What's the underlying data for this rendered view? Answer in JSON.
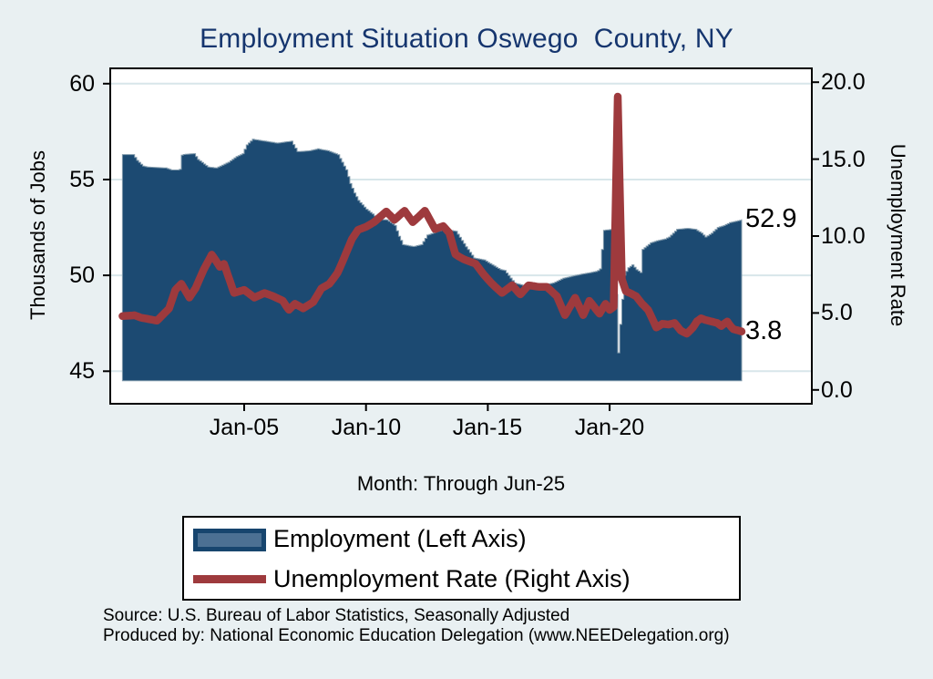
{
  "colors": {
    "background": "#e9f0f2",
    "plot_background": "#ffffff",
    "gridline": "#d8e6ea",
    "axis": "#000000",
    "title_text": "#15356e",
    "area_fill": "#1c4a72",
    "area_outline": "#8099ab",
    "area_legend_fill": "#4c7093",
    "area_legend_border": "#17456e",
    "line": "#9e3a3d"
  },
  "footer": {
    "line1": "Source: U.S. Bureau of Labor Statistics, Seasonally Adjusted",
    "line2": "Produced by: National Economic Education Delegation (www.NEEDelegation.org)"
  },
  "chart_data": {
    "type": "combo",
    "title": "Employment Situation Oswego  County, NY",
    "grid": "horizontal",
    "legend_position": "bottom",
    "x_axis": {
      "label": "Month: Through Jun-25",
      "range": [
        1999.5,
        2028.3
      ],
      "ticks": [
        {
          "label": "Jan-05",
          "year": 2005
        },
        {
          "label": "Jan-10",
          "year": 2010
        },
        {
          "label": "Jan-15",
          "year": 2015
        },
        {
          "label": "Jan-20",
          "year": 2020
        }
      ]
    },
    "left_axis": {
      "label": "Thousands of Jobs",
      "range": [
        43.3,
        60.8
      ],
      "ticks": [
        45,
        50,
        55,
        60
      ]
    },
    "right_axis": {
      "label": "Unemployment Rate",
      "range": [
        -0.9,
        20.9
      ],
      "ticks": [
        0,
        5,
        10,
        15,
        20
      ]
    },
    "end_labels": {
      "employment": "52.9",
      "unemployment": "3.8"
    },
    "series": [
      {
        "name": "Employment (Left Axis)",
        "type": "area",
        "axis": "left",
        "base": 44.5,
        "points": [
          [
            2000.0,
            56.3
          ],
          [
            2000.42,
            56.3
          ],
          [
            2000.58,
            56.0
          ],
          [
            2000.83,
            55.7
          ],
          [
            2001.0,
            55.65
          ],
          [
            2001.75,
            55.6
          ],
          [
            2002.0,
            55.5
          ],
          [
            2002.33,
            55.5
          ],
          [
            2002.42,
            56.3
          ],
          [
            2002.92,
            56.35
          ],
          [
            2003.08,
            56.05
          ],
          [
            2003.5,
            55.65
          ],
          [
            2003.83,
            55.6
          ],
          [
            2004.33,
            55.9
          ],
          [
            2004.67,
            56.2
          ],
          [
            2004.92,
            56.35
          ],
          [
            2005.08,
            56.8
          ],
          [
            2005.33,
            57.1
          ],
          [
            2005.83,
            57.0
          ],
          [
            2006.33,
            56.9
          ],
          [
            2006.92,
            57.0
          ],
          [
            2007.17,
            56.45
          ],
          [
            2007.67,
            56.5
          ],
          [
            2008.0,
            56.6
          ],
          [
            2008.42,
            56.5
          ],
          [
            2008.83,
            56.3
          ],
          [
            2009.0,
            55.9
          ],
          [
            2009.17,
            55.5
          ],
          [
            2009.33,
            54.8
          ],
          [
            2009.5,
            54.3
          ],
          [
            2009.67,
            53.9
          ],
          [
            2010.0,
            53.45
          ],
          [
            2010.25,
            53.2
          ],
          [
            2010.5,
            52.9
          ],
          [
            2010.83,
            52.9
          ],
          [
            2011.17,
            52.6
          ],
          [
            2011.33,
            52.05
          ],
          [
            2011.5,
            51.6
          ],
          [
            2011.92,
            51.5
          ],
          [
            2012.25,
            51.6
          ],
          [
            2012.5,
            52.1
          ],
          [
            2013.17,
            52.4
          ],
          [
            2013.67,
            52.3
          ],
          [
            2014.08,
            51.5
          ],
          [
            2014.42,
            50.9
          ],
          [
            2014.83,
            50.8
          ],
          [
            2015.5,
            50.3
          ],
          [
            2015.67,
            50.25
          ],
          [
            2016.08,
            49.6
          ],
          [
            2016.5,
            49.45
          ],
          [
            2017.25,
            49.5
          ],
          [
            2017.67,
            49.6
          ],
          [
            2018.08,
            49.85
          ],
          [
            2018.58,
            50.0
          ],
          [
            2019.0,
            50.1
          ],
          [
            2019.42,
            50.2
          ],
          [
            2019.58,
            50.3
          ],
          [
            2019.75,
            52.35
          ],
          [
            2020.08,
            52.4
          ],
          [
            2020.25,
            49.0
          ],
          [
            2020.33,
            45.9
          ],
          [
            2020.42,
            47.5
          ],
          [
            2020.58,
            50.0
          ],
          [
            2020.75,
            50.4
          ],
          [
            2020.92,
            50.55
          ],
          [
            2021.08,
            50.3
          ],
          [
            2021.25,
            50.15
          ],
          [
            2021.33,
            51.35
          ],
          [
            2021.67,
            51.7
          ],
          [
            2021.92,
            51.8
          ],
          [
            2022.25,
            51.9
          ],
          [
            2022.42,
            52.0
          ],
          [
            2022.75,
            52.4
          ],
          [
            2023.17,
            52.45
          ],
          [
            2023.5,
            52.4
          ],
          [
            2023.75,
            52.2
          ],
          [
            2023.92,
            52.0
          ],
          [
            2024.17,
            52.2
          ],
          [
            2024.42,
            52.5
          ],
          [
            2024.67,
            52.6
          ],
          [
            2024.92,
            52.75
          ],
          [
            2025.08,
            52.8
          ],
          [
            2025.42,
            52.9
          ]
        ]
      },
      {
        "name": "Unemployment Rate (Right Axis)",
        "type": "line",
        "axis": "right",
        "points": [
          [
            2000.0,
            4.8
          ],
          [
            2000.5,
            4.85
          ],
          [
            2000.75,
            4.7
          ],
          [
            2001.08,
            4.6
          ],
          [
            2001.42,
            4.5
          ],
          [
            2001.67,
            4.9
          ],
          [
            2001.92,
            5.3
          ],
          [
            2002.17,
            6.5
          ],
          [
            2002.42,
            6.9
          ],
          [
            2002.75,
            6.0
          ],
          [
            2003.0,
            6.6
          ],
          [
            2003.33,
            7.8
          ],
          [
            2003.67,
            8.8
          ],
          [
            2004.0,
            8.0
          ],
          [
            2004.17,
            8.2
          ],
          [
            2004.58,
            6.3
          ],
          [
            2005.0,
            6.5
          ],
          [
            2005.42,
            6.0
          ],
          [
            2005.83,
            6.3
          ],
          [
            2006.17,
            6.1
          ],
          [
            2006.58,
            5.8
          ],
          [
            2006.83,
            5.2
          ],
          [
            2007.08,
            5.6
          ],
          [
            2007.42,
            5.3
          ],
          [
            2007.83,
            5.7
          ],
          [
            2008.17,
            6.6
          ],
          [
            2008.5,
            6.9
          ],
          [
            2008.83,
            7.6
          ],
          [
            2009.08,
            8.5
          ],
          [
            2009.42,
            9.8
          ],
          [
            2009.67,
            10.4
          ],
          [
            2010.0,
            10.6
          ],
          [
            2010.33,
            10.9
          ],
          [
            2010.83,
            11.6
          ],
          [
            2011.17,
            11.05
          ],
          [
            2011.58,
            11.65
          ],
          [
            2011.92,
            10.9
          ],
          [
            2012.42,
            11.65
          ],
          [
            2012.83,
            10.45
          ],
          [
            2013.17,
            10.65
          ],
          [
            2013.42,
            10.2
          ],
          [
            2013.67,
            8.8
          ],
          [
            2014.0,
            8.5
          ],
          [
            2014.5,
            8.2
          ],
          [
            2014.83,
            7.5
          ],
          [
            2015.17,
            6.9
          ],
          [
            2015.58,
            6.3
          ],
          [
            2016.0,
            6.8
          ],
          [
            2016.33,
            6.2
          ],
          [
            2016.67,
            6.8
          ],
          [
            2017.08,
            6.7
          ],
          [
            2017.42,
            6.7
          ],
          [
            2017.83,
            6.1
          ],
          [
            2018.17,
            4.85
          ],
          [
            2018.58,
            6.0
          ],
          [
            2018.92,
            4.85
          ],
          [
            2019.17,
            5.8
          ],
          [
            2019.58,
            4.95
          ],
          [
            2019.83,
            5.6
          ],
          [
            2020.0,
            5.2
          ],
          [
            2020.17,
            5.4
          ],
          [
            2020.33,
            19.3
          ],
          [
            2020.5,
            7.2
          ],
          [
            2020.67,
            6.4
          ],
          [
            2020.83,
            6.3
          ],
          [
            2021.08,
            6.1
          ],
          [
            2021.33,
            5.6
          ],
          [
            2021.58,
            5.2
          ],
          [
            2021.92,
            4.05
          ],
          [
            2022.17,
            4.3
          ],
          [
            2022.42,
            4.25
          ],
          [
            2022.67,
            4.35
          ],
          [
            2022.92,
            3.85
          ],
          [
            2023.17,
            3.65
          ],
          [
            2023.42,
            4.05
          ],
          [
            2023.58,
            4.45
          ],
          [
            2023.75,
            4.65
          ],
          [
            2023.92,
            4.55
          ],
          [
            2024.17,
            4.45
          ],
          [
            2024.42,
            4.35
          ],
          [
            2024.58,
            4.15
          ],
          [
            2024.83,
            4.45
          ],
          [
            2024.96,
            4.15
          ],
          [
            2025.08,
            3.95
          ],
          [
            2025.42,
            3.8
          ]
        ]
      }
    ]
  }
}
